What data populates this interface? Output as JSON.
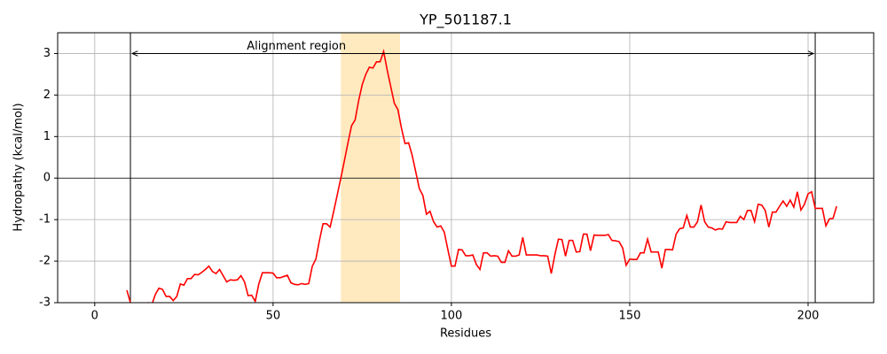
{
  "chart_data": {
    "type": "line",
    "title": "YP_501187.1",
    "x_label": "Residues",
    "y_label": "Hydropathy (kcal/mol)",
    "x": [
      9,
      10,
      11,
      12,
      13,
      14,
      15,
      16,
      17,
      18,
      19,
      20,
      21,
      22,
      23,
      24,
      25,
      26,
      27,
      28,
      29,
      30,
      31,
      32,
      33,
      34,
      35,
      36,
      37,
      38,
      39,
      40,
      41,
      42,
      43,
      44,
      45,
      46,
      47,
      48,
      49,
      50,
      51,
      52,
      53,
      54,
      55,
      56,
      57,
      58,
      59,
      60,
      61,
      62,
      63,
      64,
      65,
      66,
      67,
      68,
      69,
      70,
      71,
      72,
      73,
      74,
      75,
      76,
      77,
      78,
      79,
      80,
      81,
      82,
      83,
      84,
      85,
      86,
      87,
      88,
      89,
      90,
      91,
      92,
      93,
      94,
      95,
      96,
      97,
      98,
      99,
      100,
      101,
      102,
      103,
      104,
      105,
      106,
      107,
      108,
      109,
      110,
      111,
      112,
      113,
      114,
      115,
      116,
      117,
      118,
      119,
      120,
      121,
      122,
      123,
      124,
      125,
      126,
      127,
      128,
      129,
      130,
      131,
      132,
      133,
      134,
      135,
      136,
      137,
      138,
      139,
      140,
      141,
      142,
      143,
      144,
      145,
      146,
      147,
      148,
      149,
      150,
      151,
      152,
      153,
      154,
      155,
      156,
      157,
      158,
      159,
      160,
      161,
      162,
      163,
      164,
      165,
      166,
      167,
      168,
      169,
      170,
      171,
      172,
      173,
      174,
      175,
      176,
      177,
      178,
      179,
      180,
      181,
      182,
      183,
      184,
      185,
      186,
      187,
      188,
      189,
      190,
      191,
      192,
      193,
      194,
      195,
      196,
      197,
      198,
      199,
      200,
      201,
      202,
      203,
      204,
      205,
      206,
      207,
      208
    ],
    "series": [
      {
        "color": "#ff0000",
        "values": [
          -2.7,
          -3.0,
          -3.1,
          -3.2,
          -3.2,
          -3.1,
          -3.0,
          -3.05,
          -2.8,
          -2.65,
          -2.68,
          -2.85,
          -2.85,
          -2.95,
          -2.85,
          -2.55,
          -2.58,
          -2.42,
          -2.42,
          -2.32,
          -2.33,
          -2.27,
          -2.2,
          -2.12,
          -2.25,
          -2.3,
          -2.2,
          -2.35,
          -2.5,
          -2.45,
          -2.46,
          -2.45,
          -2.35,
          -2.5,
          -2.83,
          -2.82,
          -2.97,
          -2.55,
          -2.28,
          -2.28,
          -2.28,
          -2.29,
          -2.4,
          -2.4,
          -2.37,
          -2.34,
          -2.52,
          -2.56,
          -2.57,
          -2.54,
          -2.56,
          -2.54,
          -2.12,
          -1.95,
          -1.5,
          -1.1,
          -1.1,
          -1.18,
          -0.8,
          -0.4,
          0.0,
          0.42,
          0.85,
          1.26,
          1.4,
          1.87,
          2.25,
          2.5,
          2.67,
          2.65,
          2.8,
          2.8,
          3.05,
          2.6,
          2.2,
          1.8,
          1.65,
          1.2,
          0.83,
          0.85,
          0.55,
          0.15,
          -0.25,
          -0.42,
          -0.87,
          -0.8,
          -1.05,
          -1.18,
          -1.15,
          -1.3,
          -1.72,
          -2.12,
          -2.12,
          -1.72,
          -1.73,
          -1.87,
          -1.87,
          -1.85,
          -2.08,
          -2.2,
          -1.8,
          -1.8,
          -1.88,
          -1.87,
          -1.88,
          -2.03,
          -2.03,
          -1.75,
          -1.88,
          -1.88,
          -1.85,
          -1.43,
          -1.85,
          -1.85,
          -1.85,
          -1.85,
          -1.87,
          -1.87,
          -1.88,
          -2.3,
          -1.85,
          -1.47,
          -1.48,
          -1.88,
          -1.5,
          -1.5,
          -1.78,
          -1.77,
          -1.35,
          -1.35,
          -1.75,
          -1.37,
          -1.38,
          -1.38,
          -1.38,
          -1.36,
          -1.5,
          -1.51,
          -1.53,
          -1.68,
          -2.1,
          -1.95,
          -1.96,
          -1.96,
          -1.8,
          -1.8,
          -1.47,
          -1.78,
          -1.78,
          -1.78,
          -2.17,
          -1.72,
          -1.72,
          -1.73,
          -1.35,
          -1.22,
          -1.2,
          -0.9,
          -1.18,
          -1.18,
          -1.05,
          -0.65,
          -1.05,
          -1.18,
          -1.2,
          -1.25,
          -1.22,
          -1.23,
          -1.05,
          -1.07,
          -1.07,
          -1.07,
          -0.92,
          -1.0,
          -0.78,
          -0.78,
          -1.05,
          -0.63,
          -0.65,
          -0.78,
          -1.18,
          -0.82,
          -0.82,
          -0.68,
          -0.55,
          -0.68,
          -0.53,
          -0.7,
          -0.33,
          -0.77,
          -0.63,
          -0.38,
          -0.33,
          -0.73,
          -0.73,
          -0.73,
          -1.15,
          -0.98,
          -0.97,
          -0.68
        ]
      }
    ],
    "xlim": [
      -10.4,
      218.4
    ],
    "ylim": [
      -3,
      3.5
    ],
    "xticks": [
      0,
      50,
      100,
      150,
      200
    ],
    "yticks": [
      -3,
      -2,
      -1,
      0,
      1,
      2,
      3
    ],
    "grid": true,
    "hline": 0,
    "vlines": [
      10,
      202
    ],
    "shade": {
      "x": [
        69,
        85.6
      ],
      "color": "#ffe9bf"
    },
    "annotation": {
      "text": "Alignment region",
      "x": [
        10,
        202
      ],
      "y": 3
    }
  }
}
